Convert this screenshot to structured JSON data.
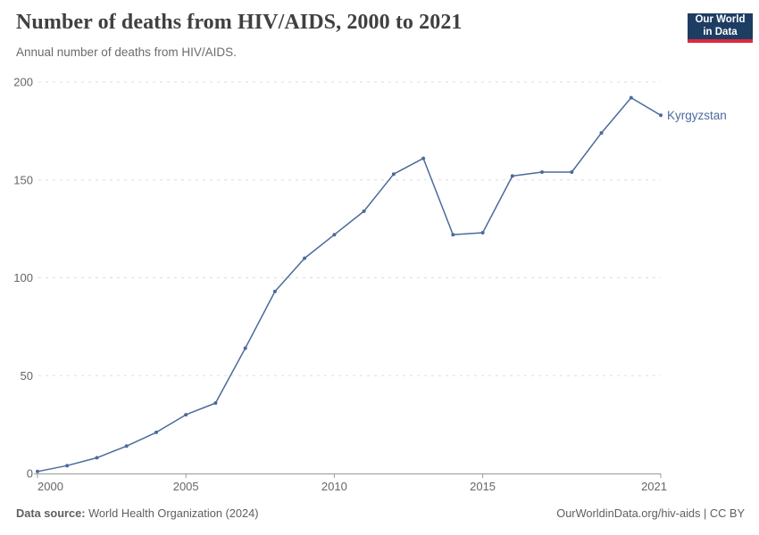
{
  "header": {
    "title": "Number of deaths from HIV/AIDS, 2000 to 2021",
    "subtitle": "Annual number of deaths from HIV/AIDS.",
    "logo": {
      "line1": "Our World",
      "line2": "in Data"
    }
  },
  "chart_data": {
    "type": "line",
    "title": "Number of deaths from HIV/AIDS, 2000 to 2021",
    "subtitle": "Annual number of deaths from HIV/AIDS.",
    "xlabel": "",
    "ylabel": "",
    "x": [
      2000,
      2001,
      2002,
      2003,
      2004,
      2005,
      2006,
      2007,
      2008,
      2009,
      2010,
      2011,
      2012,
      2013,
      2014,
      2015,
      2016,
      2017,
      2018,
      2019,
      2020,
      2021
    ],
    "series": [
      {
        "name": "Kyrgyzstan",
        "color": "#4C6A9C",
        "values": [
          1,
          4,
          8,
          14,
          21,
          30,
          36,
          64,
          93,
          110,
          122,
          134,
          153,
          161,
          122,
          123,
          152,
          154,
          154,
          174,
          192,
          183
        ]
      }
    ],
    "xlim": [
      2000,
      2021
    ],
    "ylim": [
      0,
      200
    ],
    "x_ticks": [
      2000,
      2005,
      2010,
      2015,
      2021
    ],
    "y_ticks": [
      0,
      50,
      100,
      150,
      200
    ],
    "grid": true,
    "grid_style": "dashed-horizontal",
    "legend_position": "line-end-label"
  },
  "colors": {
    "line": "#4C6A9C",
    "grid": "#dddddd",
    "axis": "#999999",
    "tick_label": "#666666",
    "logo_bg": "#1d3d63",
    "logo_red": "#dc2a41"
  },
  "footer": {
    "source_label": "Data source:",
    "source_text": " World Health Organization (2024)",
    "url": "OurWorldinData.org/hiv-aids",
    "separator": " | ",
    "license": "CC BY"
  }
}
